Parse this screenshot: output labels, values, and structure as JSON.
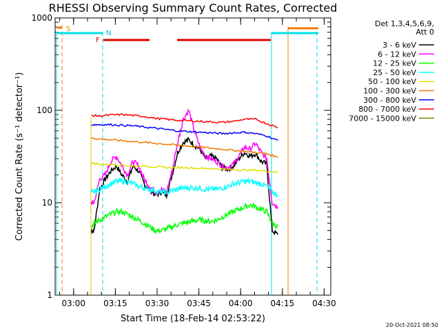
{
  "chart_data": {
    "type": "line",
    "title": "RHESSI Observing Summary Count Rates, Corrected",
    "xlabel": "Start Time (18-Feb-14 02:53:22)",
    "ylabel": "Corrected Count Rate (s⁻¹ detector⁻¹)",
    "yscale": "log",
    "ylim": [
      1,
      1000
    ],
    "xlim_minutes": [
      0,
      99
    ],
    "x_tick_labels": [
      "03:00",
      "03:15",
      "03:30",
      "03:45",
      "04:00",
      "04:15",
      "04:30"
    ],
    "x_tick_minutes": [
      6.63,
      21.63,
      36.63,
      51.63,
      66.63,
      81.63,
      96.63
    ],
    "y_tick_labels": [
      "1",
      "10",
      "100",
      "1000"
    ],
    "y_tick_values": [
      1,
      10,
      100,
      1000
    ],
    "legend": {
      "placement": "top-right",
      "header_line1": "Det 1,3,4,5,6,9,",
      "header_line2": "Att 0"
    },
    "flags": [
      {
        "label": "S",
        "color": "#f07800"
      },
      {
        "label": "N",
        "color": "#00e0e8"
      },
      {
        "label": "F",
        "color": "#e00000"
      }
    ],
    "footer_date": "20-Oct-2021 08:50",
    "series": [
      {
        "name": "3 - 6 keV",
        "color": "#000000",
        "x": [
          13,
          14,
          16,
          18,
          20,
          22,
          24,
          26,
          28,
          30,
          32,
          34,
          36,
          38,
          40,
          42,
          44,
          46,
          48,
          50,
          52,
          54,
          56,
          58,
          60,
          62,
          64,
          66,
          68,
          70,
          72,
          74,
          76,
          78,
          80
        ],
        "y": [
          5,
          5,
          14,
          18,
          22,
          25,
          20,
          17,
          25,
          22,
          16,
          14,
          12,
          13,
          12,
          20,
          35,
          45,
          48,
          42,
          38,
          30,
          32,
          30,
          24,
          23,
          25,
          30,
          35,
          32,
          34,
          28,
          26,
          5,
          4.5
        ]
      },
      {
        "name": "6 - 12 keV",
        "color": "#ff00ff",
        "x": [
          13,
          14,
          16,
          18,
          20,
          22,
          24,
          26,
          28,
          30,
          32,
          34,
          36,
          38,
          40,
          42,
          44,
          46,
          48,
          50,
          52,
          54,
          56,
          58,
          60,
          62,
          64,
          66,
          68,
          70,
          72,
          74,
          76,
          78,
          80
        ],
        "y": [
          10,
          10,
          18,
          20,
          28,
          32,
          25,
          20,
          28,
          25,
          18,
          15,
          13,
          14,
          13,
          22,
          45,
          80,
          100,
          60,
          40,
          32,
          30,
          28,
          25,
          24,
          26,
          32,
          40,
          38,
          44,
          35,
          30,
          10,
          9
        ]
      },
      {
        "name": "12 - 25 keV",
        "color": "#00ff00",
        "x": [
          13,
          14,
          16,
          18,
          20,
          22,
          24,
          26,
          28,
          30,
          32,
          34,
          36,
          38,
          40,
          42,
          44,
          46,
          48,
          50,
          52,
          54,
          56,
          58,
          60,
          62,
          64,
          66,
          68,
          70,
          72,
          74,
          76,
          78,
          80
        ],
        "y": [
          5.5,
          6,
          6.5,
          7,
          7.5,
          8,
          8,
          7.5,
          7,
          6.5,
          6,
          5.5,
          5,
          5,
          5.2,
          5.5,
          5.8,
          6,
          6.2,
          6.4,
          6.5,
          6.4,
          6.3,
          6.5,
          7,
          7.5,
          8,
          8.5,
          9,
          9.5,
          9,
          8.5,
          8,
          6,
          5.5
        ]
      },
      {
        "name": "25 - 50 keV",
        "color": "#00ffff",
        "x": [
          13,
          14,
          16,
          18,
          20,
          22,
          24,
          26,
          28,
          30,
          32,
          34,
          36,
          38,
          40,
          42,
          44,
          46,
          48,
          50,
          52,
          54,
          56,
          58,
          60,
          62,
          64,
          66,
          68,
          70,
          72,
          74,
          76,
          78,
          80
        ],
        "y": [
          13,
          13,
          14,
          15,
          16,
          17,
          17,
          17,
          16,
          15,
          14.5,
          14,
          13.5,
          13,
          13,
          13.5,
          14,
          14.5,
          14.5,
          14.5,
          14.5,
          14,
          14,
          14,
          14.5,
          15,
          16,
          16.5,
          17,
          17,
          16.5,
          16,
          15,
          13,
          12
        ]
      },
      {
        "name": "50 - 100 keV",
        "color": "#e0e000",
        "x": [
          13,
          16,
          20,
          24,
          28,
          32,
          36,
          40,
          44,
          48,
          52,
          56,
          60,
          64,
          68,
          72,
          76,
          80
        ],
        "y": [
          27,
          26,
          26,
          25.5,
          25,
          25,
          24.5,
          24,
          24,
          24,
          23.5,
          23.5,
          23,
          23,
          22.5,
          22.5,
          22,
          21.5
        ]
      },
      {
        "name": "100 - 300 keV",
        "color": "#f07800",
        "x": [
          13,
          16,
          20,
          24,
          28,
          32,
          36,
          40,
          44,
          48,
          52,
          56,
          60,
          64,
          68,
          72,
          76,
          80
        ],
        "y": [
          50,
          49,
          48,
          47,
          46,
          45,
          44,
          43,
          42,
          41,
          40,
          39,
          38,
          37,
          36,
          35,
          34,
          31
        ]
      },
      {
        "name": "300 - 800 keV",
        "color": "#0000ff",
        "x": [
          13,
          16,
          20,
          24,
          28,
          32,
          36,
          40,
          44,
          48,
          52,
          56,
          60,
          64,
          68,
          72,
          76,
          80
        ],
        "y": [
          70,
          70,
          70,
          69,
          68,
          66,
          64,
          62,
          60,
          59,
          58,
          57,
          56,
          57,
          58,
          56,
          53,
          47
        ]
      },
      {
        "name": "800 - 7000 keV",
        "color": "#ff0000",
        "x": [
          13,
          16,
          20,
          24,
          28,
          32,
          36,
          40,
          44,
          48,
          52,
          56,
          60,
          64,
          68,
          72,
          76,
          80
        ],
        "y": [
          88,
          87,
          89,
          90,
          88,
          86,
          82,
          80,
          78,
          77,
          76,
          75,
          74,
          76,
          80,
          80,
          72,
          65
        ]
      },
      {
        "name": "7000 - 15000 keV",
        "color": "#808000",
        "x": [],
        "y": []
      }
    ]
  }
}
